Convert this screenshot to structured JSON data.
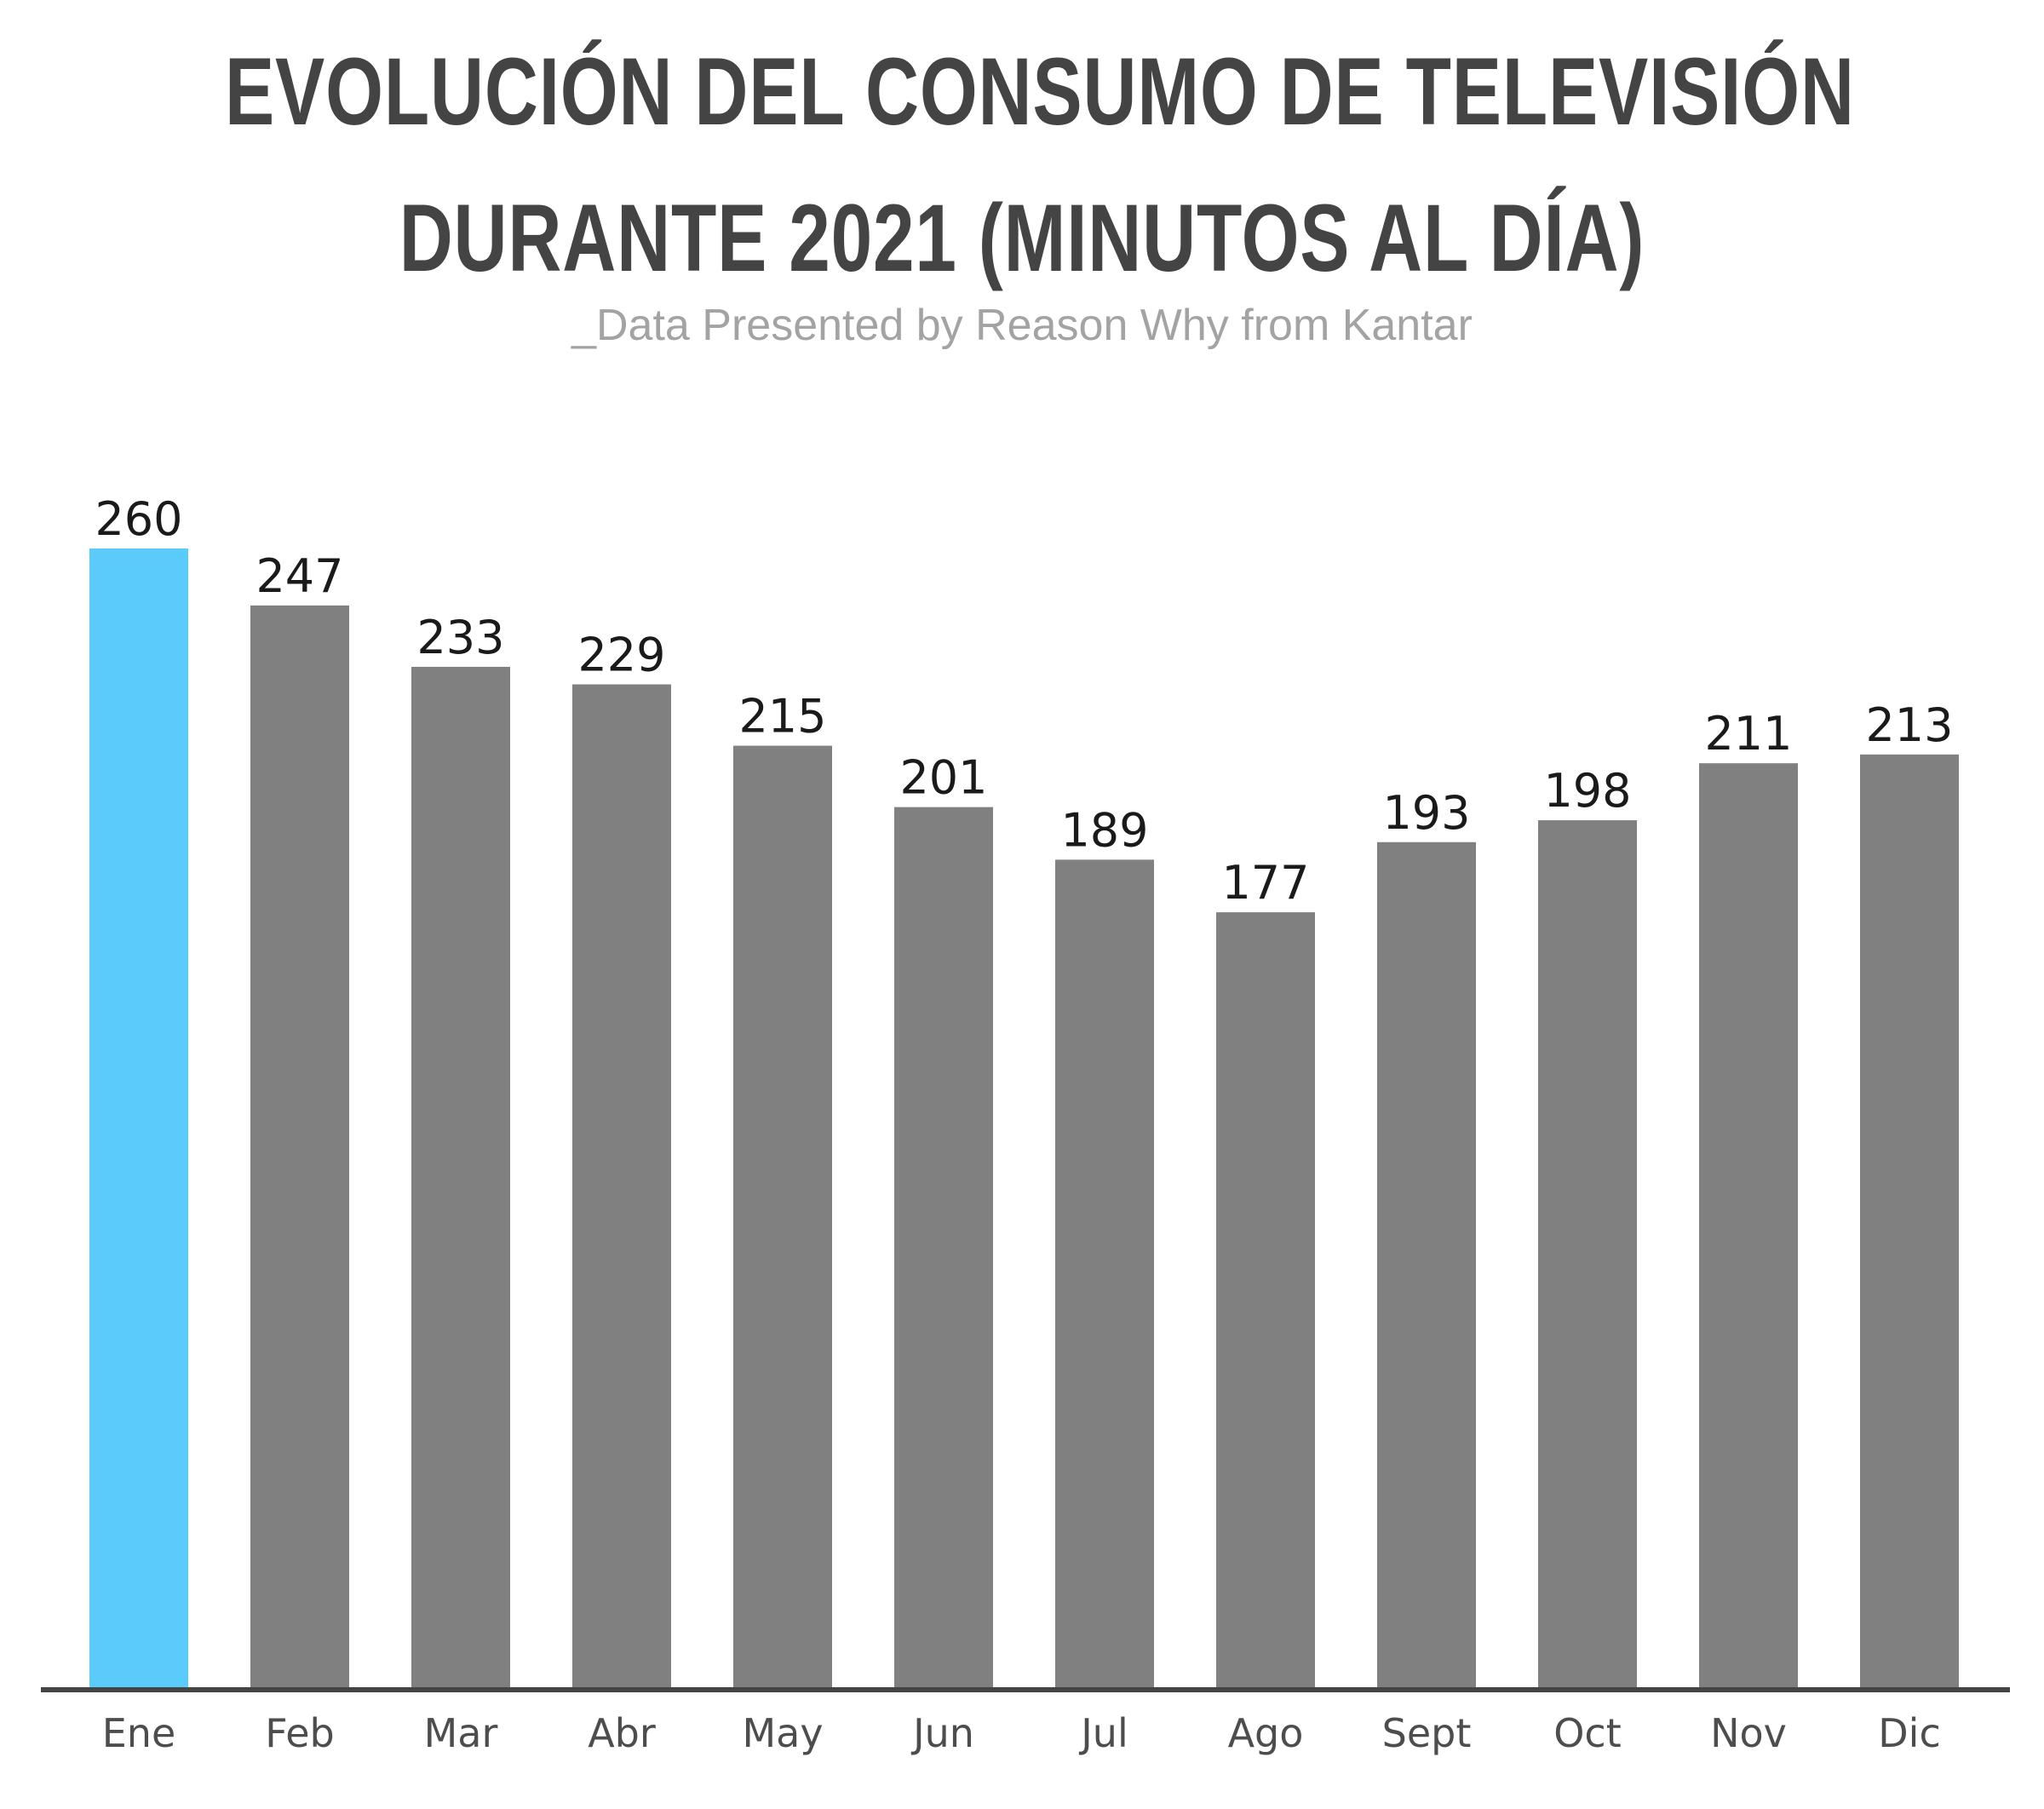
{
  "title_line1": "EVOLUCIÓN DEL CONSUMO DE TELEVISIÓN",
  "title_line2": "DURANTE 2021 (MINUTOS AL DÍA)",
  "subtitle": "_Data Presented by Reason Why from Kantar",
  "colors": {
    "highlight": "#5BCBFB",
    "bar": "#808080",
    "axis": "#444444",
    "title": "#444444",
    "subtitle": "#a3a3a3"
  },
  "chart_data": {
    "type": "bar",
    "title": "EVOLUCIÓN DEL CONSUMO DE TELEVISIÓN DURANTE 2021 (MINUTOS AL DÍA)",
    "subtitle": "_Data Presented by Reason Why from Kantar",
    "categories": [
      "Ene",
      "Feb",
      "Mar",
      "Abr",
      "May",
      "Jun",
      "Jul",
      "Ago",
      "Sept",
      "Oct",
      "Nov",
      "Dic"
    ],
    "values": [
      260,
      247,
      233,
      229,
      215,
      201,
      189,
      177,
      193,
      198,
      211,
      213
    ],
    "highlight_index": 0,
    "xlabel": "",
    "ylabel": "",
    "ylim": [
      0,
      260
    ],
    "grid": false,
    "data_labels": true
  }
}
